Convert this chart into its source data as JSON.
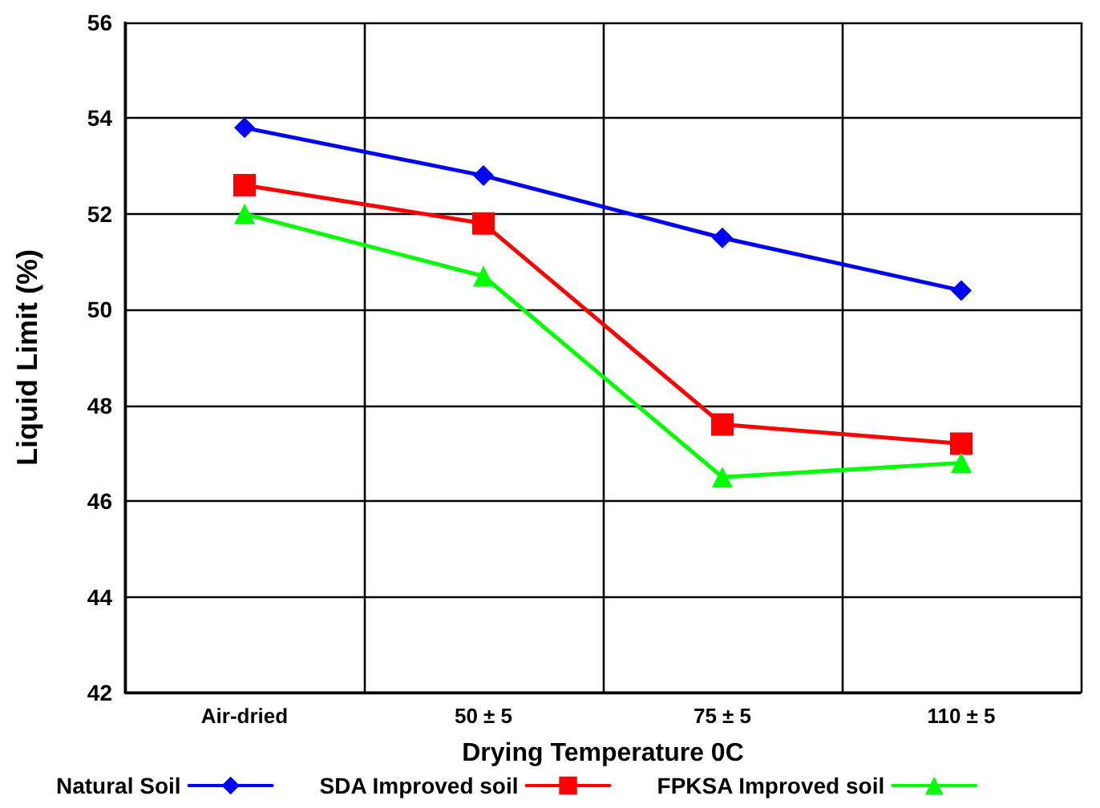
{
  "chart_data": {
    "type": "line",
    "xlabel": "Drying Temperature 0C",
    "ylabel": "Liquid Limit (%)",
    "categories": [
      "Air-dried",
      "50 ± 5",
      "75 ± 5",
      "110 ± 5"
    ],
    "series": [
      {
        "name": "Natural Soil",
        "color": "#0000ff",
        "marker": "diamond",
        "values": [
          53.8,
          52.8,
          51.5,
          50.4
        ]
      },
      {
        "name": "SDA Improved soil",
        "color": "#ff0000",
        "marker": "square",
        "values": [
          52.6,
          51.8,
          47.6,
          47.2
        ]
      },
      {
        "name": "FPKSA Improved soil",
        "color": "#00ff00",
        "marker": "triangle",
        "values": [
          52.0,
          50.7,
          46.5,
          46.8
        ]
      }
    ],
    "ylim": [
      42,
      56
    ],
    "yticks": [
      42,
      44,
      46,
      48,
      50,
      52,
      54,
      56
    ],
    "grid": true,
    "legend": "bottom",
    "line_style": "solid"
  }
}
